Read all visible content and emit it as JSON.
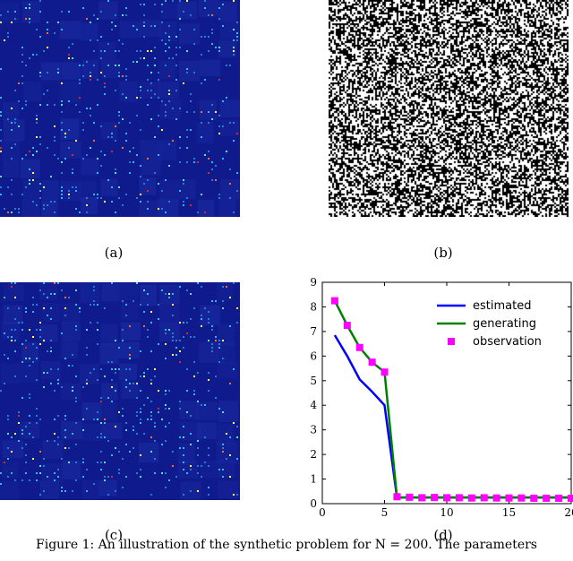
{
  "panels": {
    "a_label": "(a)",
    "b_label": "(b)",
    "c_label": "(c)",
    "d_label": "(d)"
  },
  "caption": "Figure 1: An illustration of the synthetic problem for N = 200. The parameters",
  "colors": {
    "heat_background": "#0f1a8c",
    "heat_spots": [
      "#2a7bd6",
      "#32b8e8",
      "#5fe0c8",
      "#ffff55",
      "#ff6a2a",
      "#d52a2a"
    ],
    "estimated": "#0000ff",
    "generating": "#008000",
    "observation": "#ff00ff"
  },
  "chart_data": [
    {
      "type": "heatmap",
      "panel": "(a)",
      "description_colormap": "jet"
    },
    {
      "type": "heatmap",
      "panel": "(b)",
      "description_colormap": "binary"
    },
    {
      "type": "heatmap",
      "panel": "(c)",
      "description_colormap": "jet"
    },
    {
      "type": "line",
      "panel": "(d)",
      "title": "",
      "xlabel": "",
      "ylabel": "",
      "xlim": [
        0,
        20
      ],
      "ylim": [
        0,
        9
      ],
      "xticks": [
        0,
        5,
        10,
        15,
        20
      ],
      "yticks": [
        0,
        1,
        2,
        3,
        4,
        5,
        6,
        7,
        8,
        9
      ],
      "legend_position": "top-right",
      "grid": false,
      "series": [
        {
          "name": "estimated",
          "style": "line",
          "x": [
            1,
            2,
            3,
            4,
            5,
            6,
            7,
            8,
            9,
            10,
            11,
            12,
            13,
            14,
            15,
            16,
            17,
            18,
            19,
            20
          ],
          "y": [
            6.85,
            6.0,
            5.05,
            4.55,
            4.0,
            0.25,
            0.25,
            0.25,
            0.25,
            0.25,
            0.25,
            0.25,
            0.25,
            0.25,
            0.25,
            0.25,
            0.25,
            0.25,
            0.25,
            0.25
          ]
        },
        {
          "name": "generating",
          "style": "line",
          "x": [
            1,
            2,
            3,
            4,
            5,
            6,
            7,
            8,
            9,
            10,
            11,
            12,
            13,
            14,
            15,
            16,
            17,
            18,
            19,
            20
          ],
          "y": [
            8.25,
            7.25,
            6.35,
            5.75,
            5.35,
            0.25,
            0.25,
            0.25,
            0.25,
            0.25,
            0.25,
            0.25,
            0.25,
            0.25,
            0.25,
            0.25,
            0.25,
            0.25,
            0.25,
            0.25
          ]
        },
        {
          "name": "observation",
          "style": "square-markers",
          "x": [
            1,
            2,
            3,
            4,
            5,
            6,
            7,
            8,
            9,
            10,
            11,
            12,
            13,
            14,
            15,
            16,
            17,
            18,
            19,
            20
          ],
          "y": [
            8.25,
            7.25,
            6.35,
            5.75,
            5.35,
            0.28,
            0.26,
            0.24,
            0.25,
            0.24,
            0.24,
            0.23,
            0.24,
            0.23,
            0.23,
            0.23,
            0.22,
            0.22,
            0.22,
            0.22
          ]
        }
      ]
    }
  ]
}
